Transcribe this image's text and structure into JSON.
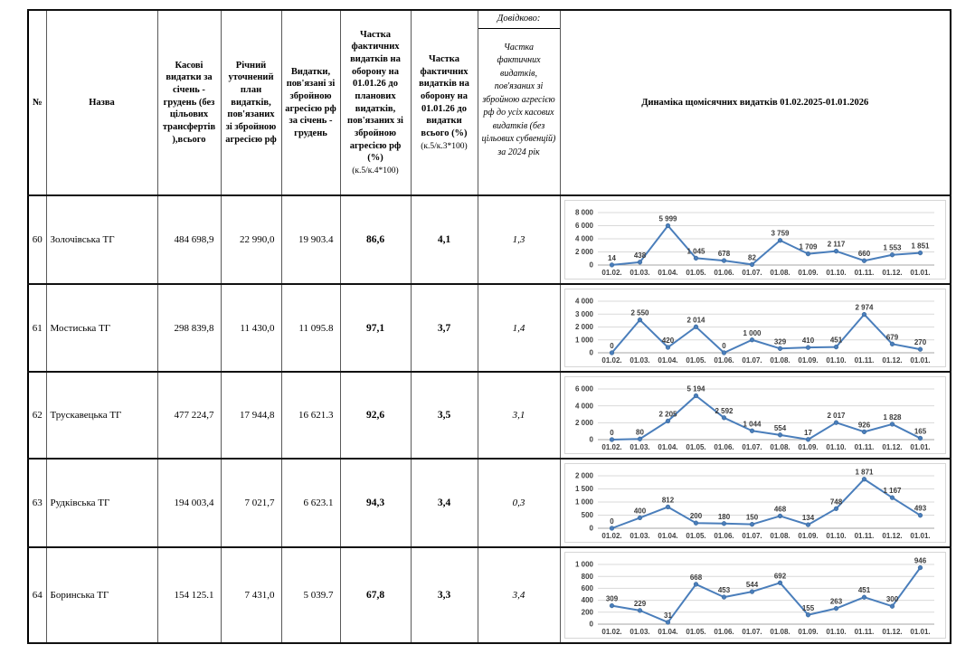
{
  "table": {
    "headers": {
      "num": "№",
      "name": "Назва",
      "cash": "Касові видатки за січень - грудень (без цільових трансфертів ),всього",
      "plan": "Річний уточнений план видатків, пов'язаних зі збройною агресією рф",
      "expense": "Видатки, пов'язані зі збройною агресією рф за січень - грудень",
      "share_plan": "Частка фактичних видатків на оборону на 01.01.26 до планових видатків, пов'язаних зі збройною агресією рф (%)",
      "share_plan_formula": "(к.5/к.4*100)",
      "share_total": "Частка фактичних видатків на оборону на 01.01.26 до видатки всього (%)",
      "share_total_formula": "(к.5/к.3*100)",
      "ref_title": "Довідково:",
      "ref_body": "Частка фактичних видатків, пов'язаних зі збройною агресією рф до усіх касових видатків (без цільових субвенцій) за 2024 рік",
      "chart": "Динаміка щомісячних видатків 01.02.2025-01.01.2026"
    },
    "rows": [
      {
        "num": "60",
        "name": "Золочівська ТГ",
        "cash": "484 698,9",
        "plan": "22 990,0",
        "expense": "19 903.4",
        "share_plan": "86,6",
        "share_total": "4,1",
        "ref": "1,3",
        "height": 98
      },
      {
        "num": "61",
        "name": "Мостиська ТГ",
        "cash": "298 839,8",
        "plan": "11 430,0",
        "expense": "11 095.8",
        "share_plan": "97,1",
        "share_total": "3,7",
        "ref": "1,4",
        "height": 97
      },
      {
        "num": "62",
        "name": "Трускавецька ТГ",
        "cash": "477 224,7",
        "plan": "17 944,8",
        "expense": "16 621.3",
        "share_plan": "92,6",
        "share_total": "3,5",
        "ref": "3,1",
        "height": 96
      },
      {
        "num": "63",
        "name": "Рудківська ТГ",
        "cash": "194 003,4",
        "plan": "7 021,7",
        "expense": "6 623.1",
        "share_plan": "94,3",
        "share_total": "3,4",
        "ref": "0,3",
        "height": 98
      },
      {
        "num": "64",
        "name": "Боринська ТГ",
        "cash": "154 125.1",
        "plan": "7 431,0",
        "expense": "5 039.7",
        "share_plan": "67,8",
        "share_total": "3,3",
        "ref": "3,4",
        "height": 106
      }
    ]
  },
  "chart_data": {
    "type": "line",
    "title": "Динаміка щомісячних видатків 01.02.2025-01.01.2026",
    "categories": [
      "01.02.",
      "01.03.",
      "01.04.",
      "01.05.",
      "01.06.",
      "01.07.",
      "01.08.",
      "01.09.",
      "01.10.",
      "01.11.",
      "01.12.",
      "01.01."
    ],
    "legend": "none",
    "grid": "horizontal",
    "line_color": "#4a7ebb",
    "series": [
      {
        "name": "Золочівська ТГ",
        "values": [
          14,
          438,
          5999,
          1045,
          678,
          82,
          3759,
          1709,
          2117,
          660,
          1553,
          1851
        ],
        "ylim": [
          0,
          8000
        ],
        "ytick": 2000
      },
      {
        "name": "Мостиська ТГ",
        "values": [
          0,
          2550,
          420,
          2014,
          0,
          1000,
          329,
          410,
          451,
          2974,
          679,
          270
        ],
        "ylim": [
          0,
          4000
        ],
        "ytick": 1000
      },
      {
        "name": "Трускавецька ТГ",
        "values": [
          0,
          80,
          2205,
          5194,
          2592,
          1044,
          554,
          17,
          2017,
          926,
          1828,
          165
        ],
        "ylim": [
          0,
          6000
        ],
        "ytick": 2000
      },
      {
        "name": "Рудківська ТГ",
        "values": [
          0,
          400,
          812,
          200,
          180,
          150,
          468,
          134,
          748,
          1871,
          1167,
          493
        ],
        "ylim": [
          0,
          2000
        ],
        "ytick": 500
      },
      {
        "name": "Боринська ТГ",
        "values": [
          309,
          229,
          31,
          668,
          453,
          544,
          692,
          155,
          263,
          451,
          300,
          946
        ],
        "ylim": [
          0,
          1000
        ],
        "ytick": 200
      }
    ]
  }
}
